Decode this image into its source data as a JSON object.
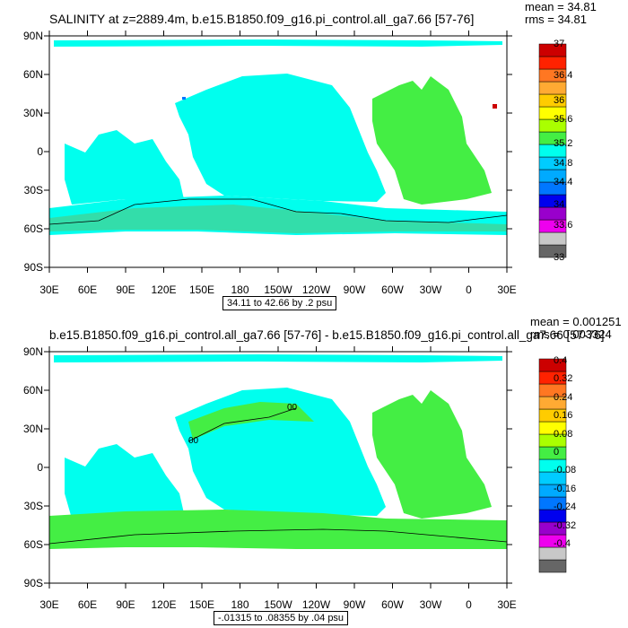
{
  "panel1": {
    "title": "SALINITY at z=2889.4m, b.e15.B1850.f09_g16.pi_control.all_ga7.66 [57-76]",
    "mean": "mean = 34.81",
    "rms": "rms = 34.81",
    "contour_info": "34.11 to 42.66 by .2 psu",
    "colorbar_labels": [
      "37",
      "36.4",
      "36",
      "35.6",
      "35.2",
      "34.8",
      "34.4",
      "34",
      "33.6",
      "33"
    ]
  },
  "panel2": {
    "title": "b.e15.B1850.f09_g16.pi_control.all_ga7.66 [57-76] - b.e15.B1850.f09_g16.pi_control.all_ga7.66 [57-76]",
    "mean": "mean = 0.001251",
    "rms": "rms = 0.003324",
    "contour_info": "-.01315 to .08355 by .04 psu",
    "contour_label": "00",
    "colorbar_labels": [
      "0.4",
      "0.32",
      "0.24",
      "0.16",
      "0.08",
      "0",
      "-0.08",
      "-0.16",
      "-0.24",
      "-0.32",
      "-0.4"
    ]
  },
  "axes": {
    "lat_labels": [
      "90N",
      "60N",
      "30N",
      "0",
      "30S",
      "60S",
      "90S"
    ],
    "lon_labels": [
      "30E",
      "60E",
      "90E",
      "120E",
      "150E",
      "180",
      "150W",
      "120W",
      "90W",
      "60W",
      "30W",
      "0",
      "30E"
    ]
  },
  "colors": {
    "ocean_cyan": "#00ffee",
    "ocean_green": "#44ee44",
    "ocean_teal": "#33ddaa",
    "land": "#ffffff",
    "colorbar": [
      "#666666",
      "#c8c8c8",
      "#ee00ee",
      "#9900cc",
      "#0000ee",
      "#0077ff",
      "#00aaff",
      "#00ccff",
      "#00ffee",
      "#44ee44",
      "#aaff00",
      "#ffff00",
      "#ffcc00",
      "#ffaa33",
      "#ff7722",
      "#ff2200",
      "#cc0000"
    ]
  }
}
